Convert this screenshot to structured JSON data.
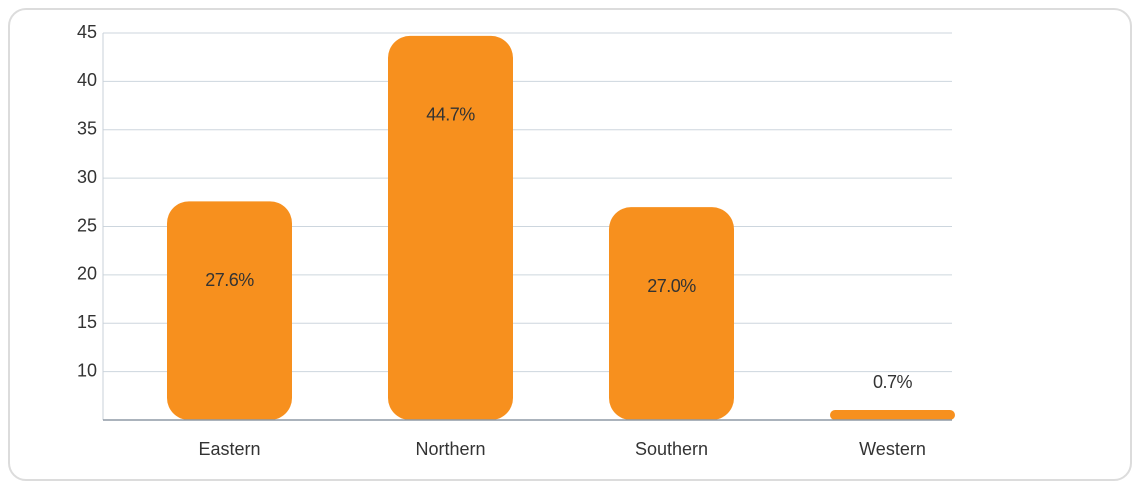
{
  "chart_data": {
    "type": "bar",
    "categories": [
      "Eastern",
      "Northern",
      "Southern",
      "Western"
    ],
    "values": [
      27.6,
      44.7,
      27.0,
      0.7
    ],
    "value_labels": [
      "27.6%",
      "44.7%",
      "27.0%",
      "0.7%"
    ],
    "color": "#f7901e",
    "ylim": [
      5,
      45
    ],
    "yticks": [
      10,
      15,
      20,
      25,
      30,
      35,
      40,
      45
    ],
    "grid": true
  }
}
